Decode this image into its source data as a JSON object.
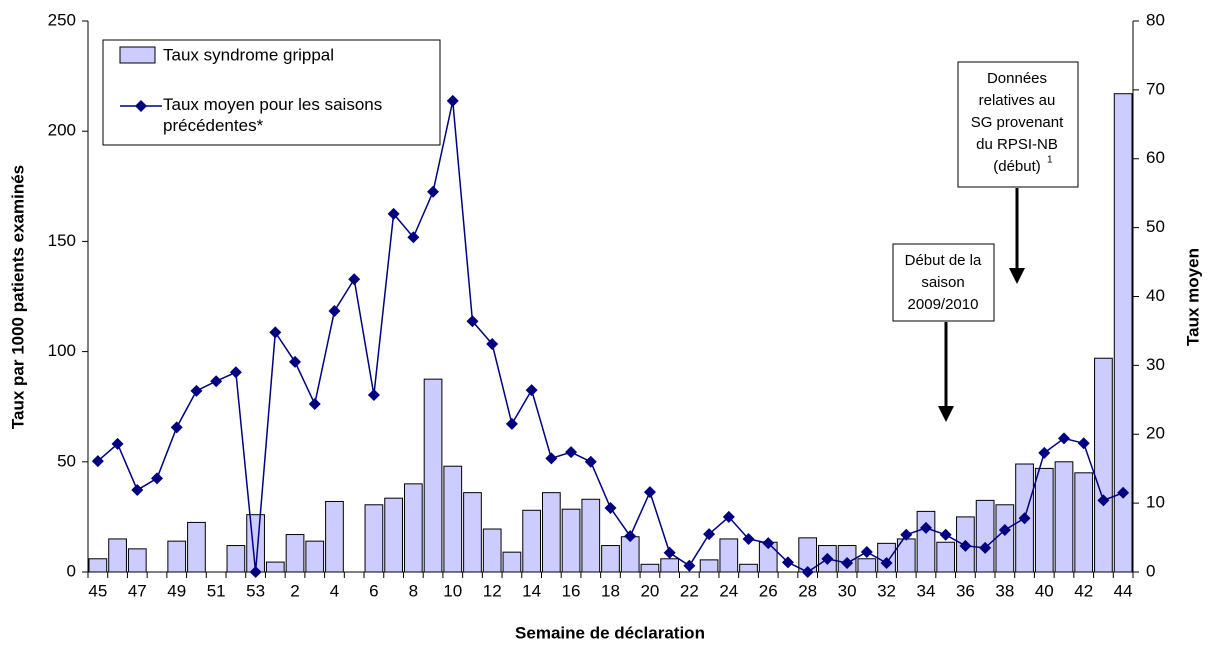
{
  "chart_data": {
    "type": "bar_line",
    "x_label": "Semaine de déclaration",
    "y_label": "Taux par 1000 patients examinés",
    "y2_label": "Taux moyen",
    "categories": [
      "45",
      null,
      "47",
      null,
      "49",
      null,
      "51",
      null,
      "53",
      null,
      "2",
      null,
      "4",
      null,
      "6",
      null,
      "8",
      null,
      "10",
      null,
      "12",
      null,
      "14",
      null,
      "16",
      null,
      "18",
      null,
      "20",
      null,
      "22",
      null,
      "24",
      null,
      "26",
      null,
      "28",
      null,
      "30",
      null,
      "32",
      null,
      "34",
      null,
      "36",
      null,
      "38",
      null,
      "40",
      null,
      "42",
      null,
      "44"
    ],
    "series": [
      {
        "name": "Taux syndrome grippal",
        "type": "bar",
        "color": "#ccccff",
        "values": [
          6,
          15,
          10.5,
          null,
          14,
          22.5,
          null,
          12,
          26,
          4.5,
          17,
          14,
          32,
          null,
          30.5,
          33.5,
          40,
          87.5,
          48,
          36,
          19.5,
          9,
          28,
          36,
          28.5,
          33,
          12,
          16,
          3.5,
          6,
          null,
          5.5,
          15,
          3.5,
          13.5,
          null,
          15.5,
          12,
          12,
          6,
          13,
          15,
          27.5,
          13.5,
          25,
          32.5,
          30.5,
          49,
          47,
          50,
          45,
          97,
          217
        ]
      },
      {
        "name": "Taux moyen pour les saisons précédentes*",
        "type": "line",
        "axis": "y2",
        "color": "#000080",
        "values": [
          16.1,
          18.6,
          11.9,
          13.6,
          21,
          26.3,
          27.7,
          29,
          0,
          34.8,
          30.5,
          24.4,
          37.9,
          42.5,
          25.7,
          52,
          48.6,
          55.2,
          68.4,
          36.4,
          33.1,
          21.5,
          26.4,
          16.5,
          17.4,
          16,
          9.3,
          5.2,
          11.6,
          2.8,
          0.9,
          5.5,
          8,
          4.8,
          4.2,
          1.4,
          0,
          1.9,
          1.3,
          2.9,
          1.3,
          5.4,
          6.4,
          5.4,
          3.8,
          3.5,
          6.1,
          7.8,
          17.3,
          19.4,
          18.7,
          10.4,
          11.5
        ]
      }
    ],
    "ylim": [
      0,
      250
    ],
    "yticks": [
      0,
      50,
      100,
      150,
      200,
      250
    ],
    "y2lim": [
      0,
      80
    ],
    "y2ticks": [
      0,
      10,
      20,
      30,
      40,
      50,
      60,
      70,
      80
    ],
    "legend": "top-left",
    "annotations": [
      {
        "lines": [
          "Début de la",
          "saison",
          "2009/2010"
        ]
      },
      {
        "lines": [
          "Données",
          "relatives au",
          "SG provenant",
          "du RPSI-NB",
          "(début)"
        ],
        "footnote_mark": "1"
      }
    ]
  }
}
